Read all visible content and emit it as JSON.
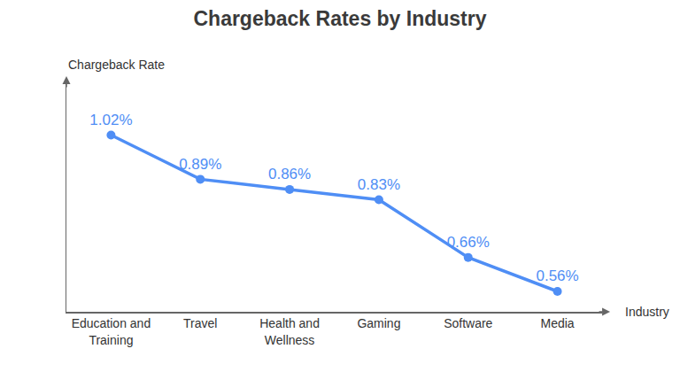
{
  "chart_data": {
    "type": "line",
    "title": "Chargeback Rates by Industry",
    "x_label": "Industry",
    "y_label": "Chargeback Rate",
    "categories": [
      "Education and Training",
      "Travel",
      "Health and Wellness",
      "Gaming",
      "Software",
      "Media"
    ],
    "values": [
      1.02,
      0.89,
      0.86,
      0.83,
      0.66,
      0.56
    ],
    "value_labels": [
      "1.02%",
      "0.89%",
      "0.86%",
      "0.83%",
      "0.66%",
      "0.56%"
    ],
    "color": "#4f8ef5",
    "marker": "circle",
    "line_style": "solid",
    "ylim": [
      0.5,
      1.17
    ],
    "data_labels": true,
    "tick_labels": "x",
    "grid": false
  }
}
